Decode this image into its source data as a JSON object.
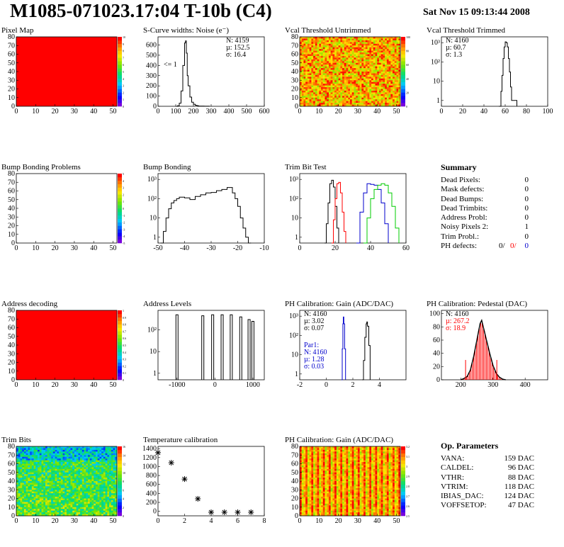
{
  "header": {
    "title": "M1085-071023.17:04 T-10b (C4)",
    "date": "Sat Nov 15 09:13:44 2008"
  },
  "colors": {
    "red": "#ff0000",
    "blue": "#0000cc",
    "green": "#00cc00",
    "black": "#000000"
  },
  "chart_data": [
    {
      "id": "pixel-map",
      "type": "heatmap",
      "title": "Pixel Map",
      "fill": "uniform-max",
      "xticks": [
        "0",
        "10",
        "20",
        "30",
        "40",
        "50"
      ],
      "yticks": [
        "0",
        "10",
        "20",
        "30",
        "40",
        "50",
        "60",
        "70",
        "80"
      ],
      "xlim": [
        0,
        52
      ],
      "ylim": [
        0,
        80
      ],
      "zticks": [
        "0",
        "1",
        "2",
        "3",
        "4",
        "5",
        "6",
        "7",
        "8",
        "9",
        "10"
      ]
    },
    {
      "id": "scurve-widths",
      "type": "line",
      "title": "S-Curve widths: Noise (e⁻)",
      "xticks": [
        "0",
        "100",
        "200",
        "300",
        "400",
        "500",
        "600"
      ],
      "yticks": [
        "0",
        "100",
        "200",
        "300",
        "400",
        "500",
        "600"
      ],
      "xlim": [
        0,
        600
      ],
      "ylim": [
        0,
        680
      ],
      "stats": [
        "N: 4159",
        "µ: 152.5",
        "σ: 16.4"
      ],
      "annotation": "<= 1",
      "x": [
        100,
        110,
        120,
        130,
        140,
        150,
        155,
        160,
        165,
        170,
        180,
        190,
        200,
        210,
        220,
        230,
        260,
        290
      ],
      "y": [
        0,
        5,
        30,
        150,
        400,
        620,
        640,
        520,
        300,
        200,
        90,
        40,
        20,
        10,
        5,
        2,
        1,
        0
      ]
    },
    {
      "id": "vcal-untrimmed",
      "type": "heatmap",
      "title": "Vcal Threshold Untrimmed",
      "fill": "noisy-hot",
      "xticks": [
        "0",
        "10",
        "20",
        "30",
        "40",
        "50"
      ],
      "yticks": [
        "0",
        "10",
        "20",
        "30",
        "40",
        "50",
        "60",
        "70",
        "80"
      ],
      "xlim": [
        0,
        52
      ],
      "ylim": [
        0,
        80
      ],
      "zticks": [
        "0",
        "20",
        "40",
        "60",
        "80",
        "100"
      ]
    },
    {
      "id": "vcal-trimmed",
      "type": "line",
      "title": "Vcal Threshold Trimmed",
      "ylog": true,
      "xticks": [
        "0",
        "20",
        "40",
        "60",
        "80",
        "100"
      ],
      "yticks": [
        "1",
        "10",
        "10²",
        "10³"
      ],
      "xlim": [
        0,
        100
      ],
      "ylim": [
        0.5,
        2000
      ],
      "stats": [
        "N: 4160",
        "µ: 60.7",
        "σ: 1.3"
      ],
      "x": [
        54,
        56,
        57,
        58,
        59,
        60,
        61,
        62,
        63,
        64,
        65,
        66,
        68,
        70,
        71
      ],
      "y": [
        0.5,
        3,
        20,
        150,
        600,
        1100,
        1000,
        600,
        150,
        30,
        5,
        1,
        1,
        1,
        0.5
      ]
    },
    {
      "id": "bump-problems",
      "type": "heatmap",
      "title": "Bump Bonding Problems",
      "fill": "empty",
      "xticks": [
        "0",
        "10",
        "20",
        "30",
        "40",
        "50"
      ],
      "yticks": [
        "0",
        "10",
        "20",
        "30",
        "40",
        "50",
        "60",
        "70",
        "80"
      ],
      "xlim": [
        0,
        52
      ],
      "ylim": [
        0,
        80
      ],
      "zticks": [
        "-5",
        "-4",
        "-3",
        "-2",
        "-1",
        "0",
        "1",
        "2",
        "3",
        "4",
        "5"
      ]
    },
    {
      "id": "bump-bonding",
      "type": "line",
      "title": "Bump Bonding",
      "ylog": true,
      "xticks": [
        "-50",
        "-40",
        "-30",
        "-20",
        "-10"
      ],
      "yticks": [
        "1",
        "10",
        "10²",
        "10³"
      ],
      "xlim": [
        -50,
        -10
      ],
      "ylim": [
        0.5,
        2000
      ],
      "x": [
        -49,
        -48,
        -47,
        -46,
        -45,
        -44,
        -43,
        -42,
        -40,
        -38,
        -36,
        -34,
        -32,
        -30,
        -28,
        -26,
        -24,
        -22,
        -21,
        -20,
        -19,
        -18,
        -17,
        -16,
        -15
      ],
      "y": [
        0.5,
        2,
        10,
        30,
        60,
        80,
        100,
        120,
        110,
        90,
        130,
        160,
        200,
        210,
        260,
        300,
        380,
        200,
        100,
        40,
        10,
        3,
        1,
        0.5,
        0.5
      ]
    },
    {
      "id": "trim-bit-test",
      "type": "line",
      "title": "Trim Bit Test",
      "ylog": true,
      "xticks": [
        "0",
        "20",
        "40",
        "60"
      ],
      "yticks": [
        "1",
        "10",
        "10²",
        "10³"
      ],
      "xlim": [
        0,
        60
      ],
      "ylim": [
        0.5,
        2000
      ],
      "series": [
        {
          "color": "black",
          "x": [
            14,
            15,
            16,
            17,
            18,
            19,
            20,
            21,
            22
          ],
          "y": [
            0.5,
            5,
            60,
            600,
            900,
            400,
            40,
            3,
            0.5
          ]
        },
        {
          "color": "red",
          "x": [
            18,
            19,
            20,
            21,
            22,
            23,
            24,
            25,
            26
          ],
          "y": [
            0.5,
            8,
            100,
            600,
            700,
            200,
            20,
            2,
            0.5
          ]
        },
        {
          "color": "blue",
          "x": [
            32,
            34,
            36,
            38,
            40,
            42,
            44,
            46,
            48,
            50
          ],
          "y": [
            0.5,
            20,
            200,
            600,
            550,
            500,
            300,
            60,
            5,
            0.5
          ]
        },
        {
          "color": "green",
          "x": [
            36,
            38,
            40,
            42,
            44,
            46,
            48,
            50,
            52,
            54,
            56
          ],
          "y": [
            0.5,
            10,
            100,
            300,
            500,
            600,
            500,
            200,
            40,
            3,
            0.5
          ]
        }
      ]
    },
    {
      "id": "address-decoding",
      "type": "heatmap",
      "title": "Address decoding",
      "fill": "uniform-max",
      "xticks": [
        "0",
        "10",
        "20",
        "30",
        "40",
        "50"
      ],
      "yticks": [
        "0",
        "10",
        "20",
        "30",
        "40",
        "50",
        "60",
        "70",
        "80"
      ],
      "xlim": [
        0,
        52
      ],
      "ylim": [
        0,
        80
      ],
      "zticks": [
        "0",
        "0.1",
        "0.2",
        "0.3",
        "0.4",
        "0.5",
        "0.6",
        "0.7",
        "0.8",
        "0.9",
        "1"
      ]
    },
    {
      "id": "address-levels",
      "type": "line",
      "title": "Address Levels",
      "ylog": true,
      "xticks": [
        "-1000",
        "0",
        "1000"
      ],
      "yticks": [
        "1",
        "10",
        "10²"
      ],
      "xlim": [
        -1500,
        1300
      ],
      "ylim": [
        0.5,
        800
      ],
      "peaks": [
        -1000,
        -320,
        -60,
        190,
        430,
        680,
        900,
        1000
      ],
      "peak_height": [
        500,
        450,
        500,
        500,
        500,
        400,
        300,
        250
      ]
    },
    {
      "id": "ph-gain",
      "type": "line",
      "title": "PH Calibration: Gain (ADC/DAC)",
      "ylog": true,
      "xticks": [
        "-2",
        "0",
        "2",
        "4"
      ],
      "yticks": [
        "1",
        "10",
        "10²",
        "10³"
      ],
      "xlim": [
        -2,
        6
      ],
      "ylim": [
        0.5,
        2000
      ],
      "stats": [
        "N: 4160",
        "µ: 3.02",
        "σ: 0.07"
      ],
      "stats2": [
        "Par1:",
        "N: 4160",
        "µ: 1.28",
        "σ: 0.03"
      ],
      "series": [
        {
          "color": "black",
          "x": [
            2.7,
            2.8,
            2.9,
            3.0,
            3.05,
            3.1,
            3.2,
            3.3
          ],
          "y": [
            0.5,
            5,
            80,
            400,
            500,
            300,
            30,
            0.5
          ]
        },
        {
          "color": "blue",
          "x": [
            1.15,
            1.2,
            1.25,
            1.28,
            1.32,
            1.38,
            1.45
          ],
          "y": [
            0.5,
            20,
            400,
            900,
            400,
            20,
            0.5
          ]
        }
      ]
    },
    {
      "id": "ph-pedestal",
      "type": "line",
      "title": "PH Calibration: Pedestal (DAC)",
      "xticks": [
        "200",
        "300",
        "400"
      ],
      "yticks": [
        "0",
        "20",
        "40",
        "60",
        "80",
        "100"
      ],
      "xlim": [
        140,
        470
      ],
      "ylim": [
        0,
        105
      ],
      "stats": [
        "N: 4160",
        "µ: 267.2",
        "σ: 18.9"
      ],
      "x": [
        200,
        210,
        220,
        230,
        240,
        250,
        260,
        265,
        270,
        280,
        290,
        300,
        310,
        320,
        330,
        340
      ],
      "y": [
        0,
        2,
        5,
        15,
        35,
        60,
        85,
        90,
        80,
        60,
        40,
        22,
        10,
        4,
        1,
        0
      ],
      "markers": [
        215,
        312
      ]
    },
    {
      "id": "trim-bits",
      "type": "heatmap",
      "title": "Trim Bits",
      "fill": "noisy-cool",
      "xticks": [
        "0",
        "10",
        "20",
        "30",
        "40",
        "50"
      ],
      "yticks": [
        "0",
        "10",
        "20",
        "30",
        "40",
        "50",
        "60",
        "70",
        "80"
      ],
      "xlim": [
        0,
        52
      ],
      "ylim": [
        0,
        80
      ],
      "zticks": [
        "0",
        "2",
        "4",
        "6",
        "8",
        "10",
        "12",
        "14",
        "16"
      ]
    },
    {
      "id": "temperature-calibration",
      "type": "scatter",
      "title": "Temperature calibration",
      "xticks": [
        "0",
        "2",
        "4",
        "6",
        "8"
      ],
      "yticks": [
        "0",
        "200",
        "400",
        "600",
        "800",
        "1000",
        "1200",
        "1400"
      ],
      "xlim": [
        0,
        8
      ],
      "ylim": [
        -100,
        1450
      ],
      "x": [
        0,
        1,
        2,
        3,
        4,
        5,
        6,
        7
      ],
      "y": [
        1310,
        1085,
        720,
        280,
        -20,
        -20,
        -20,
        -20
      ]
    },
    {
      "id": "ph-gain-map",
      "type": "heatmap",
      "title": "PH Calibration: Gain (ADC/DAC)",
      "fill": "stripes",
      "xticks": [
        "0",
        "10",
        "20",
        "30",
        "40",
        "50"
      ],
      "yticks": [
        "0",
        "10",
        "20",
        "30",
        "40",
        "50",
        "60",
        "70",
        "80"
      ],
      "xlim": [
        0,
        52
      ],
      "ylim": [
        0,
        80
      ],
      "zticks": [
        "2.5",
        "2.6",
        "2.7",
        "2.8",
        "2.9",
        "3",
        "3.1",
        "3.2"
      ]
    }
  ],
  "summary": {
    "title": "Summary",
    "rows": [
      {
        "label": "Dead Pixels:",
        "value": "0"
      },
      {
        "label": "Mask defects:",
        "value": "0"
      },
      {
        "label": "Dead Bumps:",
        "value": "0"
      },
      {
        "label": "Dead Trimbits:",
        "value": "0"
      },
      {
        "label": "Address Probl:",
        "value": "0"
      },
      {
        "label": "Noisy Pixels 2:",
        "value": "1"
      },
      {
        "label": "Trim Probl.:",
        "value": "0"
      }
    ],
    "ph_label": "PH defects:",
    "ph_values": [
      "0/",
      "0/",
      "0"
    ]
  },
  "op_params": {
    "title": "Op. Parameters",
    "rows": [
      {
        "label": "VANA:",
        "value": "159 DAC"
      },
      {
        "label": "CALDEL:",
        "value": "96 DAC"
      },
      {
        "label": "VTHR:",
        "value": "88 DAC"
      },
      {
        "label": "VTRIM:",
        "value": "118 DAC"
      },
      {
        "label": "IBIAS_DAC:",
        "value": "124 DAC"
      },
      {
        "label": "VOFFSETOP:",
        "value": "47 DAC"
      }
    ]
  }
}
